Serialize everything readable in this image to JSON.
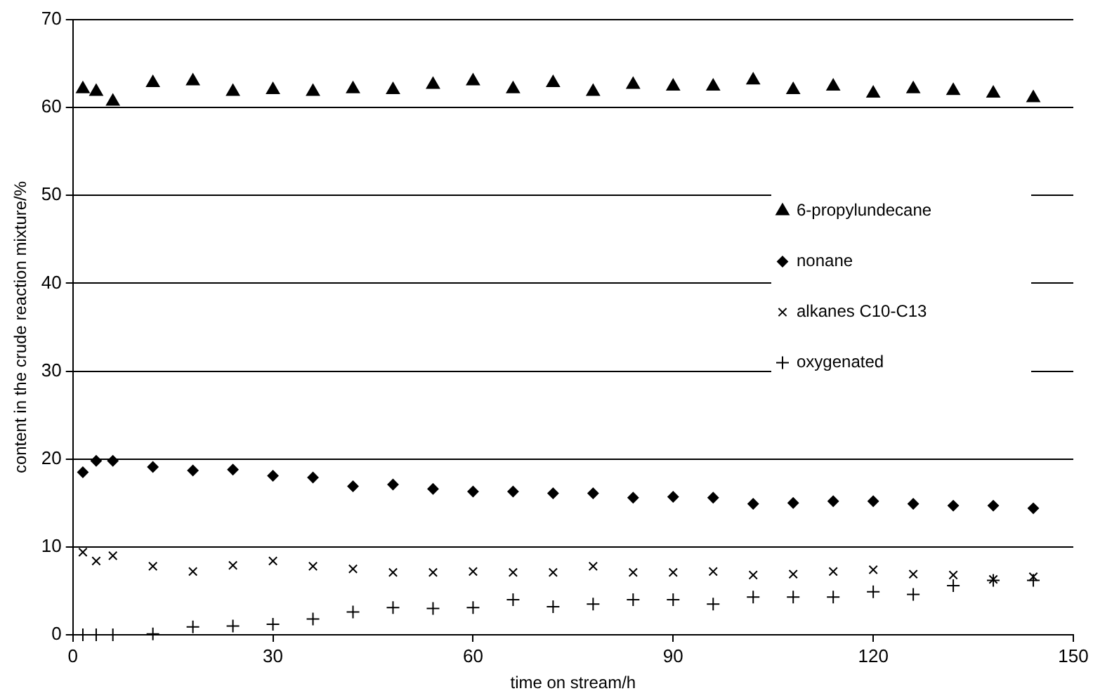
{
  "chart_data": {
    "type": "scatter",
    "xlabel": "time on stream/h",
    "ylabel": "content in the crude reaction mixture/%",
    "x": [
      1.5,
      3.5,
      6,
      12,
      18,
      24,
      30,
      36,
      42,
      48,
      54,
      60,
      66,
      72,
      78,
      84,
      90,
      96,
      102,
      108,
      114,
      120,
      126,
      132,
      138,
      144
    ],
    "series": [
      {
        "name": "6-propylundecane",
        "color": "#000000",
        "marker": "triangle",
        "values": [
          62.1,
          61.8,
          60.7,
          62.8,
          63,
          61.8,
          62,
          61.8,
          62.1,
          62,
          62.6,
          63,
          62.1,
          62.8,
          61.8,
          62.6,
          62.4,
          62.4,
          63.1,
          62,
          62.4,
          61.6,
          62.1,
          61.9,
          61.6,
          61.1
        ]
      },
      {
        "name": "nonane",
        "color": "#000000",
        "marker": "diamond",
        "values": [
          18.5,
          19.8,
          19.8,
          19.1,
          18.7,
          18.8,
          18.1,
          17.9,
          16.9,
          17.1,
          16.6,
          16.3,
          16.3,
          16.1,
          16.1,
          15.6,
          15.7,
          15.6,
          14.9,
          15,
          15.2,
          15.2,
          14.9,
          14.7,
          14.7,
          14.4
        ]
      },
      {
        "name": "alkanes C10-C13",
        "color": "#000000",
        "marker": "cross",
        "values": [
          9.4,
          8.4,
          9,
          7.8,
          7.2,
          7.9,
          8.4,
          7.8,
          7.5,
          7.1,
          7.1,
          7.2,
          7.1,
          7.1,
          7.8,
          7.1,
          7.1,
          7.2,
          6.8,
          6.9,
          7.2,
          7.4,
          6.9,
          6.8,
          6.3,
          6.6
        ]
      },
      {
        "name": "oxygenated",
        "color": "#000000",
        "marker": "plus",
        "values": [
          0,
          0,
          0,
          0.1,
          0.9,
          1,
          1.2,
          1.8,
          2.6,
          3.1,
          3,
          3.1,
          4,
          3.2,
          3.5,
          4,
          4,
          3.5,
          4.3,
          4.3,
          4.3,
          4.9,
          4.6,
          5.6,
          6.2,
          6.2
        ]
      }
    ],
    "xlim": [
      0,
      150
    ],
    "xticks": [
      0,
      30,
      60,
      90,
      120,
      150
    ],
    "ylim": [
      0,
      70
    ],
    "yticks": [
      0,
      10,
      20,
      30,
      40,
      50,
      60,
      70
    ],
    "grid": "y",
    "legend": "right"
  }
}
